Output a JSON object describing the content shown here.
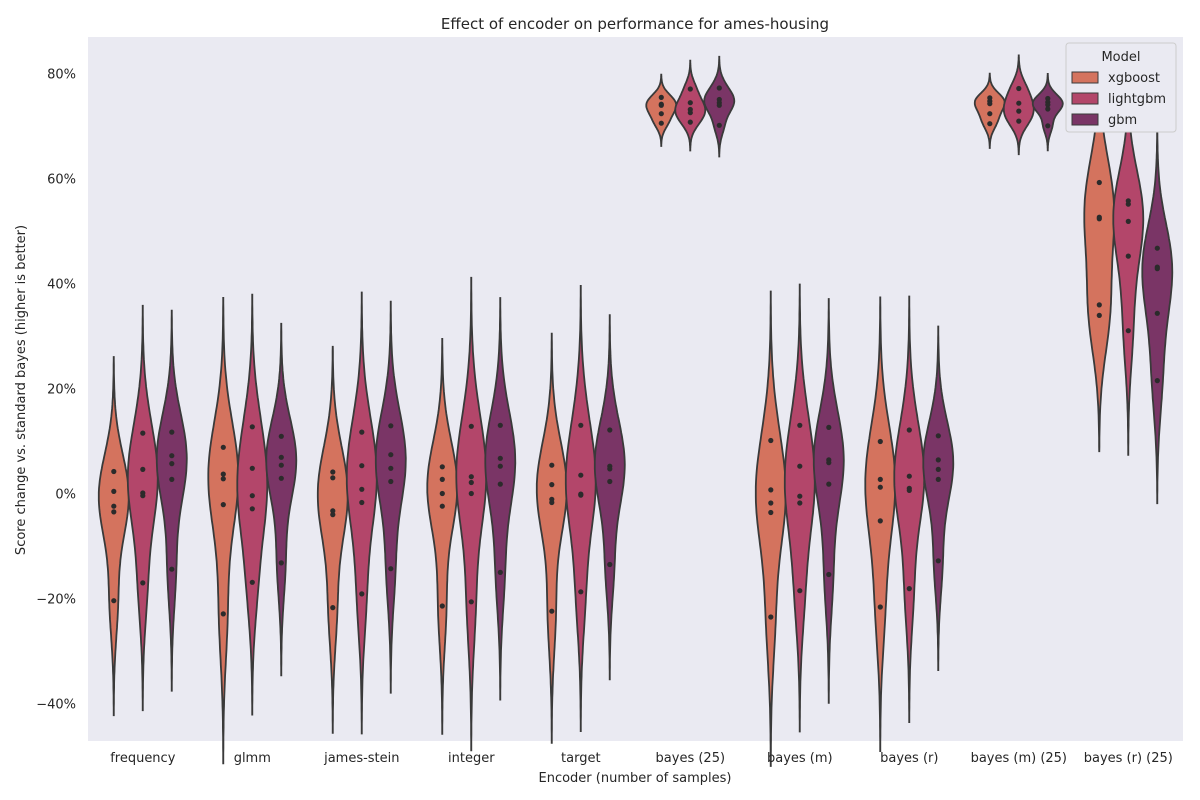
{
  "chart_data": {
    "type": "violin",
    "title": "Effect of encoder on performance for ames-housing",
    "xlabel": "Encoder (number of samples)",
    "ylabel": "Score change vs. standard bayes (higher is better)",
    "ylim": [
      -47,
      87
    ],
    "yticks": [
      -40,
      -20,
      0,
      20,
      40,
      60,
      80
    ],
    "ytick_labels": [
      "−40%",
      "−20%",
      "0%",
      "20%",
      "40%",
      "60%",
      "80%"
    ],
    "grid": false,
    "background": "#eaeaf2",
    "legend": {
      "title": "Model",
      "placement": "top-right"
    },
    "categories": [
      "frequency",
      "glmm",
      "james-stein",
      "integer",
      "target",
      "bayes (25)",
      "bayes (m)",
      "bayes (r)",
      "bayes (m) (25)",
      "bayes (r) (25)"
    ],
    "series": [
      {
        "name": "xgboost",
        "color": "#d4735e",
        "points": [
          [
            4.3,
            0.5,
            -2.3,
            -3.4,
            -20.3
          ],
          [
            8.9,
            3.8,
            2.9,
            -2.0,
            -22.8
          ],
          [
            4.2,
            3.1,
            -3.2,
            -3.9,
            -21.6
          ],
          [
            5.2,
            2.8,
            0.1,
            -2.3,
            -21.3
          ],
          [
            5.5,
            1.8,
            -1.0,
            -1.6,
            -22.3
          ],
          [
            75.5,
            74.2,
            74.0,
            72.4,
            70.6
          ],
          [
            10.2,
            0.8,
            -1.7,
            -3.5,
            -23.4
          ],
          [
            10.0,
            2.8,
            1.3,
            -5.1,
            -21.5
          ],
          [
            75.4,
            74.8,
            74.3,
            72.4,
            70.5
          ],
          [
            59.3,
            52.7,
            52.4,
            36.0,
            34.0
          ]
        ]
      },
      {
        "name": "lightgbm",
        "color": "#b3466a",
        "points": [
          [
            11.6,
            4.7,
            0.2,
            -0.3,
            -16.9
          ],
          [
            12.8,
            4.9,
            -0.3,
            -2.8,
            -16.8
          ],
          [
            11.8,
            5.4,
            0.9,
            -1.6,
            -19.0
          ],
          [
            12.9,
            3.3,
            2.2,
            0.1,
            -20.5
          ],
          [
            13.1,
            3.6,
            0.0,
            -0.2,
            -18.6
          ],
          [
            77.1,
            74.5,
            73.2,
            72.6,
            70.8
          ],
          [
            13.1,
            5.3,
            -0.4,
            -1.7,
            -18.4
          ],
          [
            12.2,
            3.4,
            1.1,
            0.7,
            -18.0
          ],
          [
            77.2,
            74.4,
            72.9,
            71.0
          ],
          [
            55.8,
            55.2,
            51.9,
            45.3,
            31.1
          ]
        ]
      },
      {
        "name": "gbm",
        "color": "#7a3566",
        "points": [
          [
            11.8,
            7.3,
            5.8,
            2.8,
            -14.3
          ],
          [
            11.0,
            7.0,
            5.5,
            3.0,
            -13.1
          ],
          [
            13.0,
            7.5,
            4.9,
            2.4,
            -14.2
          ],
          [
            13.1,
            6.8,
            5.3,
            1.9,
            -14.9
          ],
          [
            12.2,
            5.3,
            4.8,
            2.4,
            -13.4
          ],
          [
            77.3,
            75.1,
            74.5,
            74.0,
            70.2
          ],
          [
            12.7,
            6.5,
            6.0,
            1.9,
            -15.3
          ],
          [
            11.1,
            6.5,
            4.7,
            2.8,
            -12.7
          ],
          [
            75.3,
            74.6,
            74.1,
            73.3,
            70.1
          ],
          [
            46.8,
            43.2,
            42.9,
            34.4,
            21.6
          ]
        ]
      }
    ]
  }
}
